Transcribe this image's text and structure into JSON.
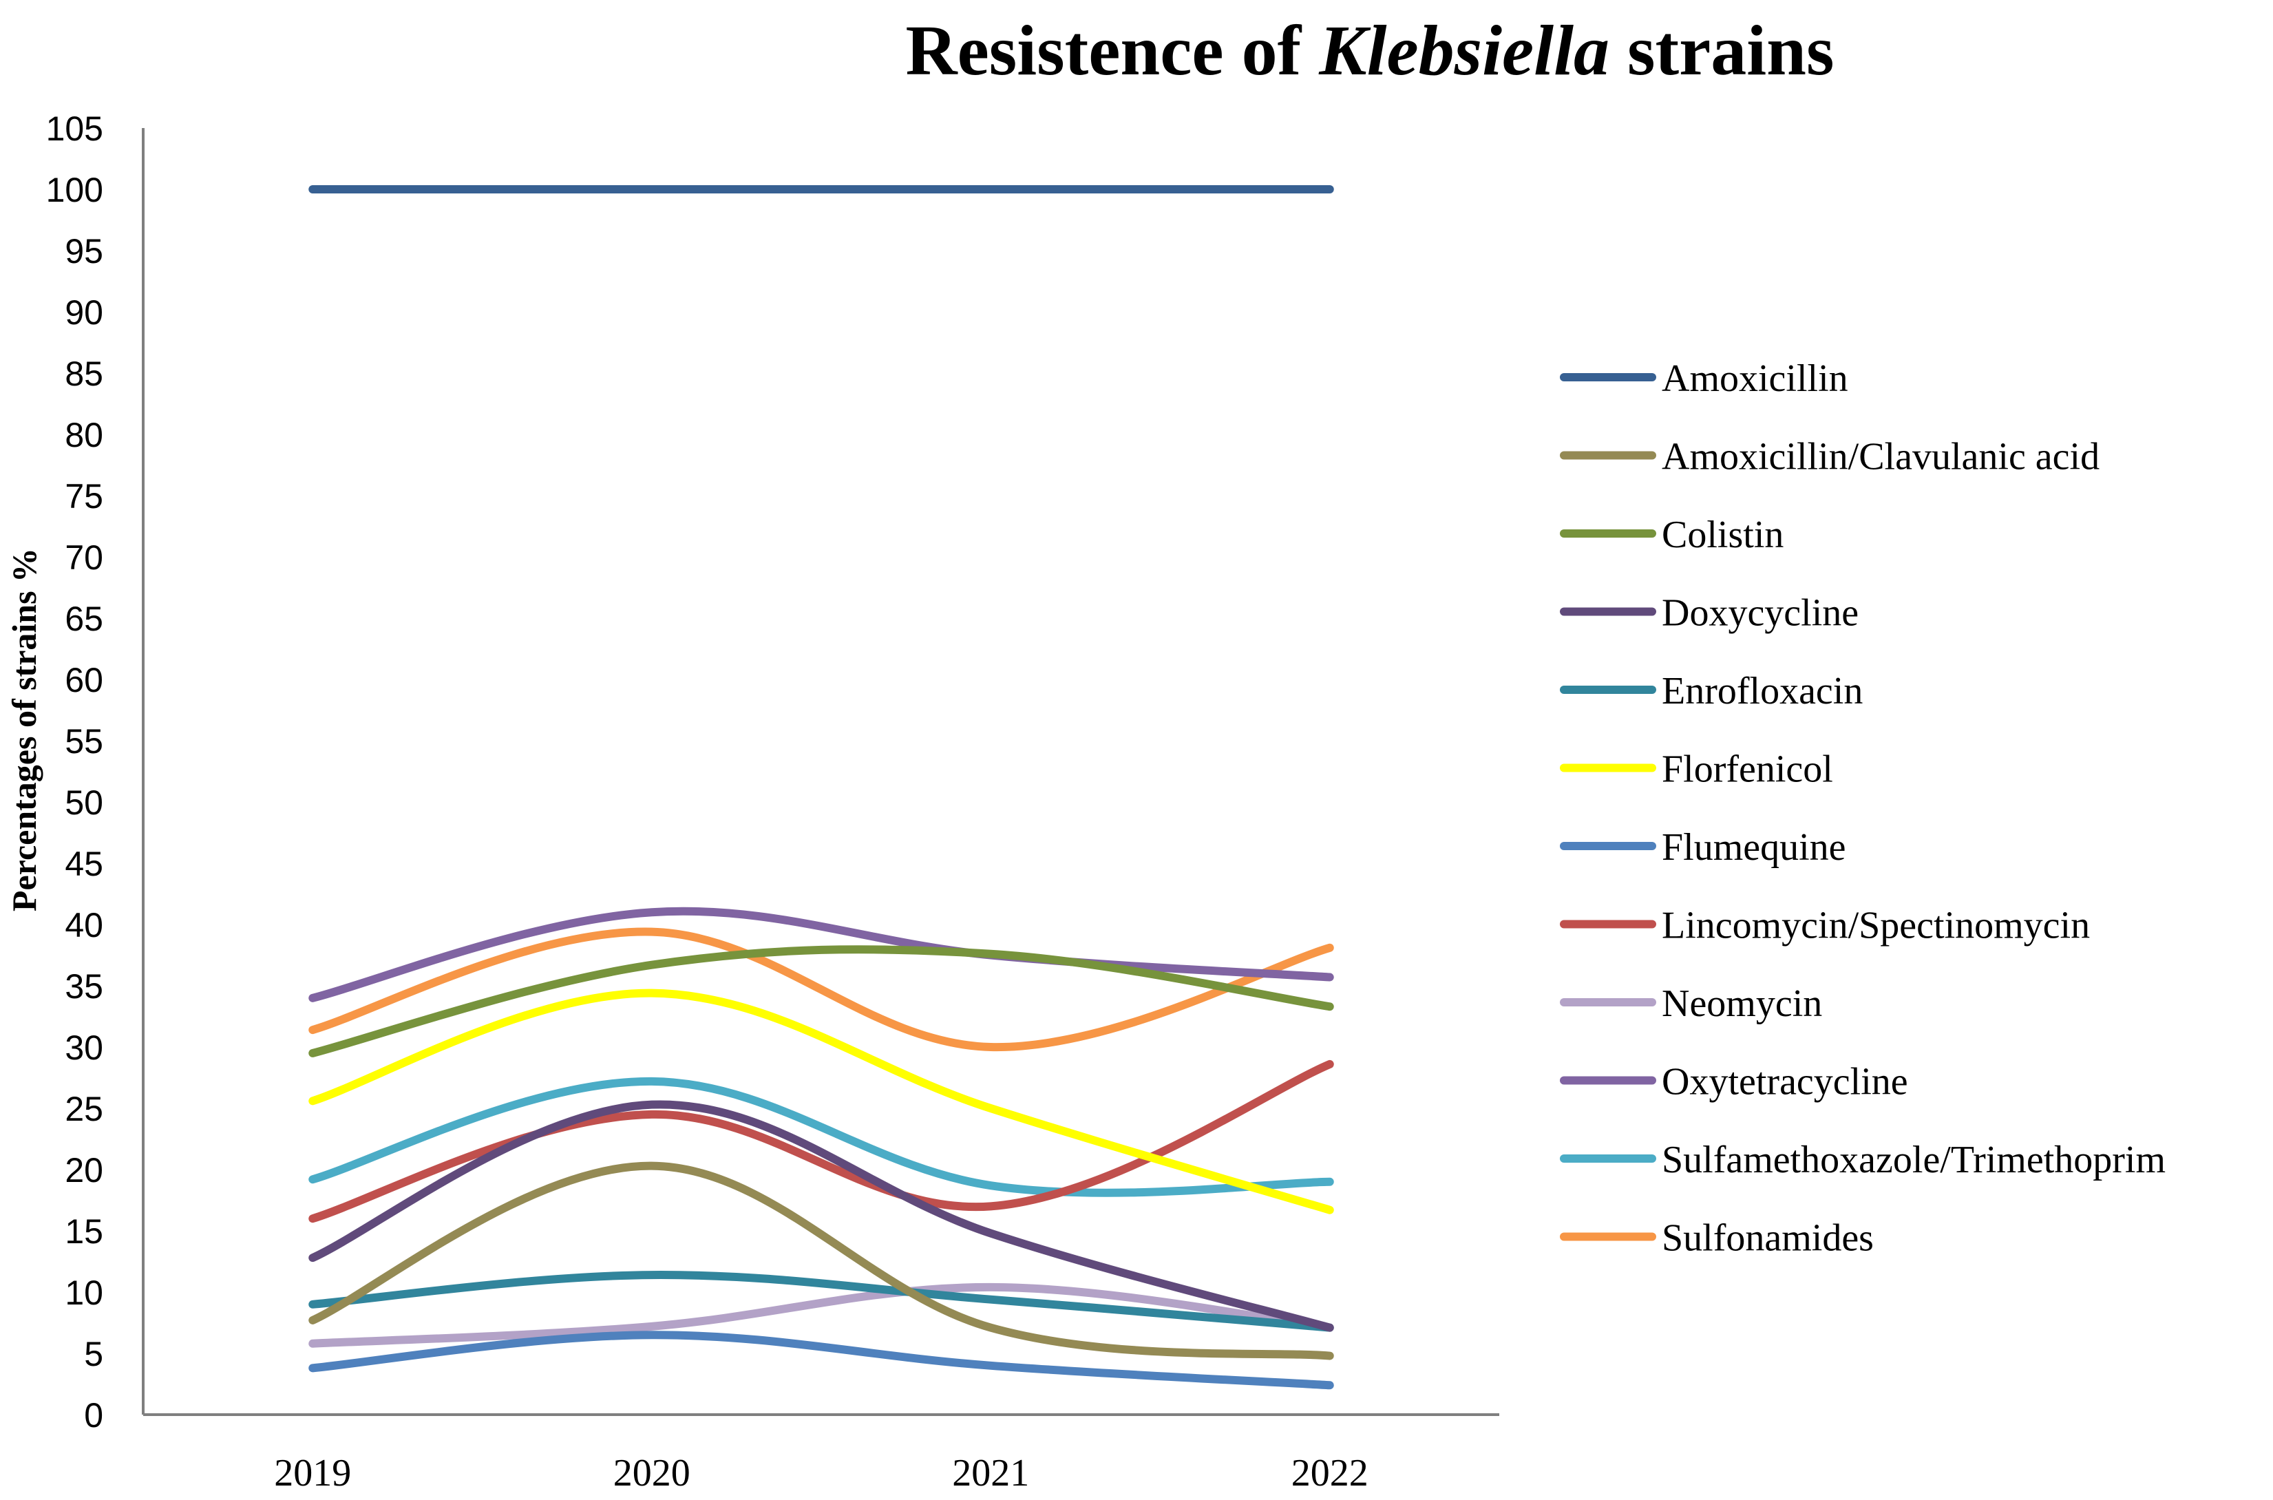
{
  "chart_data": {
    "type": "line",
    "title_parts": [
      {
        "text": "Resistence of ",
        "italic": false
      },
      {
        "text": "Klebsiella",
        "italic": true
      },
      {
        "text": " strains",
        "italic": false
      }
    ],
    "ylabel": "Percentages of strains  %",
    "xlabel": "",
    "categories": [
      "2019",
      "2020",
      "2021",
      "2022"
    ],
    "ylim": [
      0,
      105
    ],
    "yticks": [
      0,
      5,
      10,
      15,
      20,
      25,
      30,
      35,
      40,
      45,
      50,
      55,
      60,
      65,
      70,
      75,
      80,
      85,
      90,
      95,
      100,
      105
    ],
    "grid": false,
    "legend_position": "right",
    "series": [
      {
        "name": "Amoxicillin",
        "color": "#376092",
        "values": [
          100,
          100,
          100,
          100
        ]
      },
      {
        "name": "Amoxicillin/Clavulanic acid",
        "color": "#948A54",
        "values": [
          7.7,
          20.3,
          7.1,
          4.8
        ]
      },
      {
        "name": "Colistin",
        "color": "#77933C",
        "values": [
          29.5,
          36.7,
          37.6,
          33.3
        ]
      },
      {
        "name": "Doxycycline",
        "color": "#604A7B",
        "values": [
          12.8,
          25.3,
          14.8,
          7.1
        ]
      },
      {
        "name": "Enrofloxacin",
        "color": "#31859C",
        "values": [
          9.0,
          11.4,
          9.4,
          7.1
        ]
      },
      {
        "name": "Florfenicol",
        "color": "#FFFF00",
        "values": [
          25.6,
          34.4,
          25.0,
          16.7
        ]
      },
      {
        "name": "Flumequine",
        "color": "#4F81BD",
        "values": [
          3.8,
          6.5,
          4.0,
          2.4
        ]
      },
      {
        "name": "Lincomycin/Spectinomycin",
        "color": "#C0504D",
        "values": [
          16.0,
          24.5,
          17.0,
          28.6
        ]
      },
      {
        "name": "Neomycin",
        "color": "#B3A2C7",
        "values": [
          5.8,
          7.2,
          10.4,
          7.1
        ]
      },
      {
        "name": "Oxytetracycline",
        "color": "#8064A2",
        "values": [
          34.0,
          41.0,
          37.5,
          35.7
        ]
      },
      {
        "name": "Sulfamethoxazole/Trimethoprim",
        "color": "#4BACC6",
        "values": [
          19.2,
          27.2,
          18.7,
          19.0
        ]
      },
      {
        "name": "Sulfonamides",
        "color": "#F79646",
        "values": [
          31.4,
          39.4,
          30.0,
          38.1
        ]
      }
    ]
  }
}
